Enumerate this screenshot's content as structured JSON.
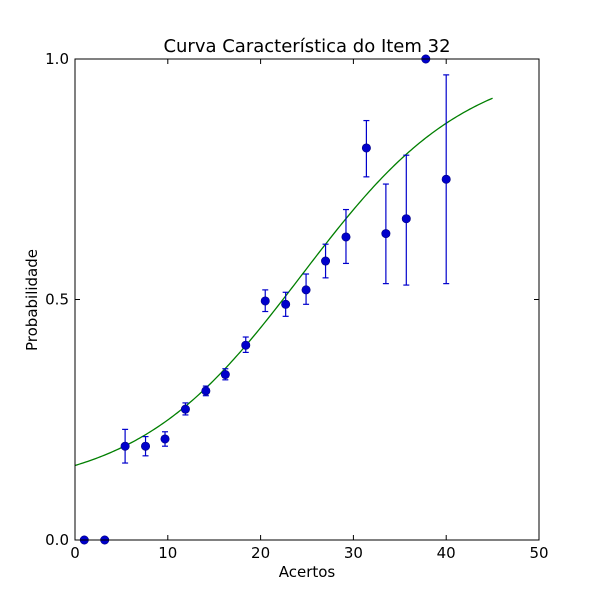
{
  "chart_data": {
    "type": "scatter",
    "title": "Curva Característica do Item 32",
    "xlabel": "Acertos",
    "ylabel": "Probabilidade",
    "xlim": [
      0,
      50
    ],
    "ylim": [
      0,
      1
    ],
    "x_ticks": [
      0,
      10,
      20,
      30,
      40,
      50
    ],
    "x_tick_labels": [
      "0",
      "10",
      "20",
      "30",
      "40",
      "50"
    ],
    "y_ticks": [
      0,
      0.5,
      1
    ],
    "y_tick_labels": [
      "0.0",
      "0.5",
      "1.0"
    ],
    "grid": false,
    "legend": "none",
    "series": [
      {
        "kind": "points_with_error_bars",
        "color": "#0000cc",
        "points": [
          {
            "x": 1.0,
            "y": 0.0,
            "err_low": 0.0,
            "err_high": 0.0
          },
          {
            "x": 3.2,
            "y": 0.0,
            "err_low": 0.0,
            "err_high": 0.0
          },
          {
            "x": 5.4,
            "y": 0.195,
            "err_low": 0.16,
            "err_high": 0.23
          },
          {
            "x": 7.6,
            "y": 0.195,
            "err_low": 0.175,
            "err_high": 0.215
          },
          {
            "x": 9.7,
            "y": 0.21,
            "err_low": 0.195,
            "err_high": 0.225
          },
          {
            "x": 11.9,
            "y": 0.272,
            "err_low": 0.26,
            "err_high": 0.285
          },
          {
            "x": 14.1,
            "y": 0.31,
            "err_low": 0.3,
            "err_high": 0.32
          },
          {
            "x": 16.2,
            "y": 0.344,
            "err_low": 0.333,
            "err_high": 0.356
          },
          {
            "x": 18.4,
            "y": 0.405,
            "err_low": 0.39,
            "err_high": 0.422
          },
          {
            "x": 20.5,
            "y": 0.497,
            "err_low": 0.475,
            "err_high": 0.52
          },
          {
            "x": 22.7,
            "y": 0.49,
            "err_low": 0.465,
            "err_high": 0.515
          },
          {
            "x": 24.9,
            "y": 0.52,
            "err_low": 0.49,
            "err_high": 0.553
          },
          {
            "x": 27.0,
            "y": 0.58,
            "err_low": 0.545,
            "err_high": 0.615
          },
          {
            "x": 29.2,
            "y": 0.63,
            "err_low": 0.575,
            "err_high": 0.687
          },
          {
            "x": 31.4,
            "y": 0.815,
            "err_low": 0.755,
            "err_high": 0.872
          },
          {
            "x": 33.5,
            "y": 0.637,
            "err_low": 0.533,
            "err_high": 0.74
          },
          {
            "x": 35.7,
            "y": 0.668,
            "err_low": 0.53,
            "err_high": 0.8
          },
          {
            "x": 37.8,
            "y": 1.0,
            "err_low": 1.0,
            "err_high": 1.0
          },
          {
            "x": 40.0,
            "y": 0.75,
            "err_low": 0.533,
            "err_high": 0.967
          }
        ]
      },
      {
        "kind": "fitted_curve",
        "color": "#007f00",
        "model": "logistic",
        "params": {
          "a": 0.1,
          "b": 0.112,
          "mid": 24.4
        },
        "x_range": [
          0,
          45
        ]
      }
    ]
  }
}
